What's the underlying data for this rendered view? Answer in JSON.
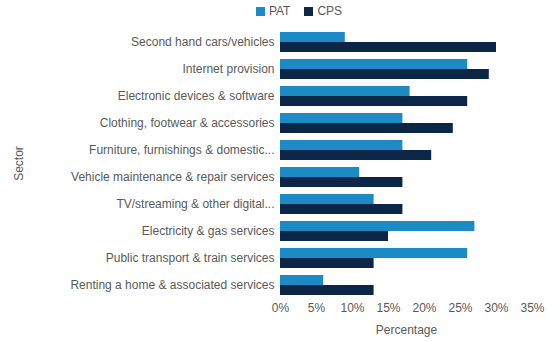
{
  "chart_data": {
    "type": "bar",
    "orientation": "horizontal",
    "categories": [
      "Second hand cars/vehicles",
      "Internet provision",
      "Electronic devices & software",
      "Clothing, footwear & accessories",
      "Furniture, furnishings & domestic...",
      "Vehicle maintenance & repair services",
      "TV/streaming & other digital...",
      "Electricity & gas services",
      "Public transport & train services",
      "Renting a home & associated services"
    ],
    "series": [
      {
        "name": "PAT",
        "color": "#1b8ac5",
        "values": [
          9,
          26,
          18,
          17,
          17,
          11,
          13,
          27,
          26,
          6
        ]
      },
      {
        "name": "CPS",
        "color": "#0c2647",
        "values": [
          30,
          29,
          26,
          24,
          21,
          17,
          17,
          15,
          13,
          13
        ]
      }
    ],
    "x_label": "Percentage",
    "y_label": "Sector",
    "xlim": [
      0,
      35
    ],
    "xticks": [
      {
        "value": 0,
        "label": "0%"
      },
      {
        "value": 5,
        "label": "5%"
      },
      {
        "value": 10,
        "label": "10%"
      },
      {
        "value": 15,
        "label": "15%"
      },
      {
        "value": 20,
        "label": "20%"
      },
      {
        "value": 25,
        "label": "25%"
      },
      {
        "value": 30,
        "label": "30%"
      },
      {
        "value": 35,
        "label": "35%"
      }
    ],
    "legend": "top",
    "grid": false
  }
}
